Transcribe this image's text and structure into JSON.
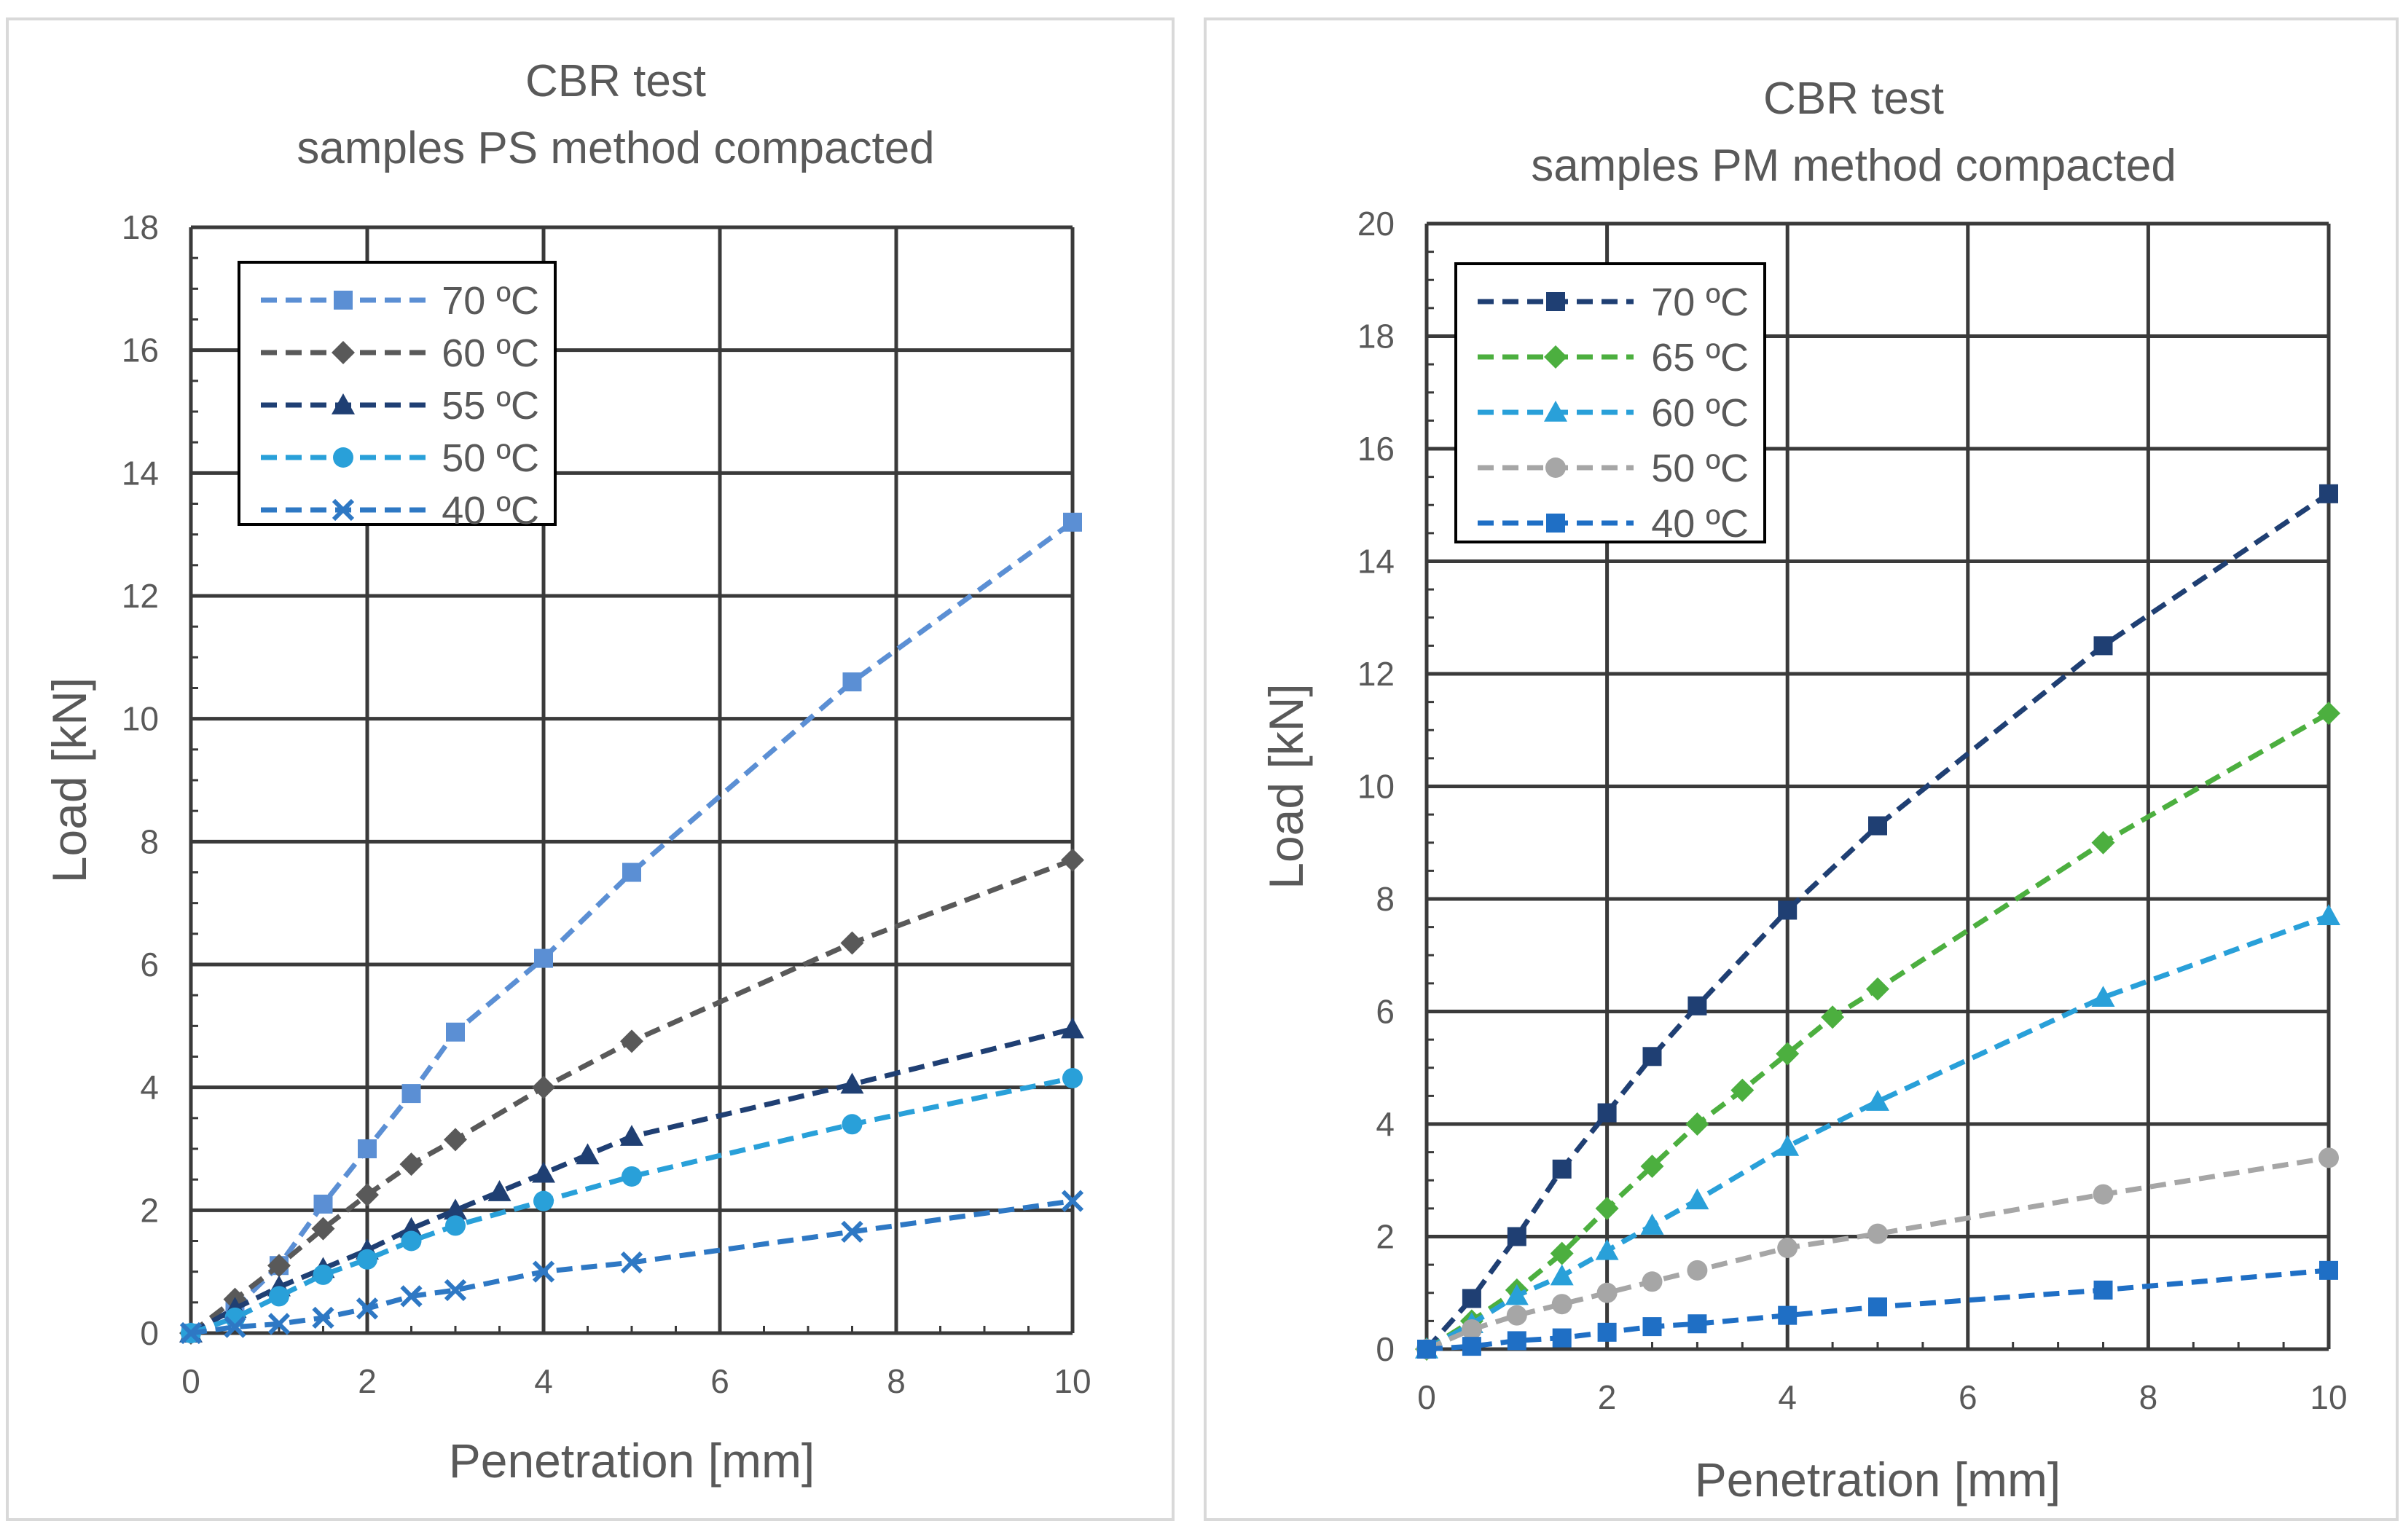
{
  "chart_data": [
    {
      "type": "line",
      "title": [
        "CBR test",
        "samples PS method compacted"
      ],
      "xlabel": "Penetration [mm]",
      "ylabel": "Load [kN]",
      "xlim": [
        0,
        10
      ],
      "ylim": [
        0,
        18
      ],
      "xticks": [
        "0",
        "2",
        "4",
        "6",
        "8",
        "10"
      ],
      "yticks": [
        "0",
        "2",
        "4",
        "6",
        "8",
        "10",
        "12",
        "14",
        "16",
        "18"
      ],
      "grid": true,
      "legend_position": "top-left",
      "series": [
        {
          "name": "70 ºC",
          "color": "#5b8fd4",
          "marker": "square",
          "x": [
            0,
            0.5,
            1,
            1.5,
            2,
            2.5,
            3,
            4,
            5,
            7.5,
            10
          ],
          "y": [
            0,
            0.4,
            1.1,
            2.1,
            3.0,
            3.9,
            4.9,
            6.1,
            7.5,
            10.6,
            13.2
          ]
        },
        {
          "name": "60 ºC",
          "color": "#595959",
          "marker": "diamond",
          "x": [
            0,
            0.5,
            1,
            1.5,
            2,
            2.5,
            3,
            4,
            5,
            7.5,
            10
          ],
          "y": [
            0,
            0.55,
            1.1,
            1.7,
            2.25,
            2.75,
            3.15,
            4.0,
            4.75,
            6.35,
            7.7
          ]
        },
        {
          "name": "55 ºC",
          "color": "#1f3f73",
          "marker": "triangle",
          "x": [
            0,
            0.5,
            1,
            1.5,
            2,
            2.5,
            3,
            3.5,
            4,
            4.5,
            5,
            7.5,
            10
          ],
          "y": [
            0,
            0.4,
            0.75,
            1.05,
            1.35,
            1.7,
            2.0,
            2.3,
            2.6,
            2.9,
            3.2,
            4.05,
            4.95
          ]
        },
        {
          "name": "50 ºC",
          "color": "#29a0d9",
          "marker": "circle",
          "x": [
            0,
            0.5,
            1,
            1.5,
            2,
            2.5,
            3,
            4,
            5,
            7.5,
            10
          ],
          "y": [
            0,
            0.25,
            0.6,
            0.95,
            1.2,
            1.5,
            1.75,
            2.15,
            2.55,
            3.4,
            4.15
          ]
        },
        {
          "name": "40 ºC",
          "color": "#2e78c4",
          "marker": "x",
          "x": [
            0,
            0.5,
            1,
            1.5,
            2,
            2.5,
            3,
            4,
            5,
            7.5,
            10
          ],
          "y": [
            0,
            0.1,
            0.15,
            0.25,
            0.4,
            0.6,
            0.7,
            1.0,
            1.15,
            1.65,
            2.15
          ]
        }
      ]
    },
    {
      "type": "line",
      "title": [
        "CBR test",
        "samples PM method compacted"
      ],
      "xlabel": "Penetration [mm]",
      "ylabel": "Load [kN]",
      "xlim": [
        0,
        10
      ],
      "ylim": [
        0,
        20
      ],
      "xticks": [
        "0",
        "2",
        "4",
        "6",
        "8",
        "10"
      ],
      "yticks": [
        "0",
        "2",
        "4",
        "6",
        "8",
        "10",
        "12",
        "14",
        "16",
        "18",
        "20"
      ],
      "grid": true,
      "legend_position": "top-left",
      "series": [
        {
          "name": "70 ºC",
          "color": "#1f3f73",
          "marker": "square",
          "x": [
            0,
            0.5,
            1,
            1.5,
            2,
            2.5,
            3,
            4,
            5,
            7.5,
            10
          ],
          "y": [
            0,
            0.9,
            2.0,
            3.2,
            4.2,
            5.2,
            6.1,
            7.8,
            9.3,
            12.5,
            15.2
          ]
        },
        {
          "name": "65 ºC",
          "color": "#4caf3f",
          "marker": "diamond",
          "x": [
            0,
            0.5,
            1,
            1.5,
            2,
            2.5,
            3,
            3.5,
            4,
            4.5,
            5,
            7.5,
            10
          ],
          "y": [
            0,
            0.5,
            1.05,
            1.7,
            2.5,
            3.25,
            4.0,
            4.6,
            5.25,
            5.9,
            6.4,
            9.0,
            11.3
          ]
        },
        {
          "name": "60 ºC",
          "color": "#29a0d9",
          "marker": "triangle",
          "x": [
            0,
            0.5,
            1,
            1.5,
            2,
            2.5,
            3,
            4,
            5,
            7.5,
            10
          ],
          "y": [
            0,
            0.45,
            0.95,
            1.3,
            1.75,
            2.2,
            2.65,
            3.6,
            4.4,
            6.25,
            7.7
          ]
        },
        {
          "name": "50 ºC",
          "color": "#a6a6a6",
          "marker": "circle",
          "x": [
            0,
            0.5,
            1,
            1.5,
            2,
            2.5,
            3,
            4,
            5,
            7.5,
            10
          ],
          "y": [
            0,
            0.35,
            0.6,
            0.8,
            1.0,
            1.2,
            1.4,
            1.8,
            2.05,
            2.75,
            3.4
          ]
        },
        {
          "name": "40 ºC",
          "color": "#1f6fc5",
          "marker": "square",
          "x": [
            0,
            0.5,
            1,
            1.5,
            2,
            2.5,
            3,
            4,
            5,
            7.5,
            10
          ],
          "y": [
            0,
            0.05,
            0.15,
            0.2,
            0.3,
            0.4,
            0.45,
            0.6,
            0.75,
            1.05,
            1.4
          ]
        }
      ]
    }
  ]
}
